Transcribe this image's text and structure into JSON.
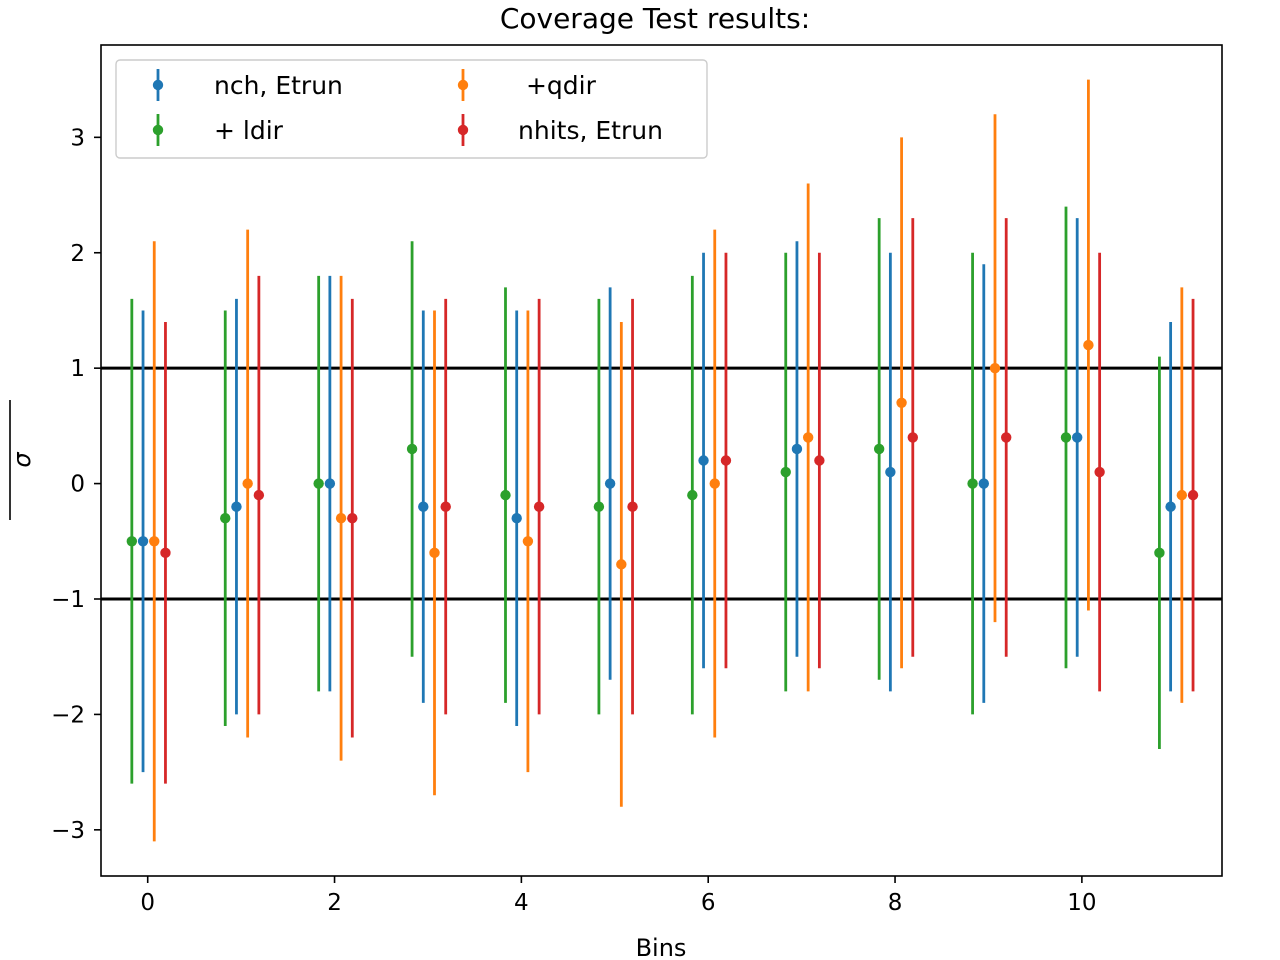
{
  "chart_data": {
    "type": "scatter",
    "title": "Coverage Test results:",
    "xlabel": "Bins",
    "ylabel": "σ",
    "xlim": [
      -0.5,
      11.5
    ],
    "ylim": [
      -3.4,
      3.8
    ],
    "xticks": [
      0,
      2,
      4,
      6,
      8,
      10
    ],
    "yticks": [
      -3,
      -2,
      -1,
      0,
      1,
      2,
      3
    ],
    "ytick_labels": [
      "−3",
      "−2",
      "−1",
      "0",
      "1",
      "2",
      "3"
    ],
    "grid": false,
    "legend_position": "top-left",
    "reference_lines": [
      1,
      -1
    ],
    "bins": [
      0,
      1,
      2,
      3,
      4,
      5,
      6,
      7,
      8,
      9,
      10,
      11
    ],
    "series": [
      {
        "name": "nch, Etrun",
        "color": "#1f77b4",
        "offset": -0.05,
        "values": [
          -0.5,
          -0.2,
          0.0,
          -0.2,
          -0.3,
          0.0,
          0.2,
          0.3,
          0.1,
          0.0,
          0.4,
          -0.2
        ],
        "lower": [
          -2.5,
          -2.0,
          -1.8,
          -1.9,
          -2.1,
          -1.7,
          -1.6,
          -1.5,
          -1.8,
          -1.9,
          -1.5,
          -1.8
        ],
        "upper": [
          1.5,
          1.6,
          1.8,
          1.5,
          1.5,
          1.7,
          2.0,
          2.1,
          2.0,
          1.9,
          2.3,
          1.4
        ]
      },
      {
        "name": " +qdir",
        "color": "#ff7f0e",
        "offset": 0.07,
        "values": [
          -0.5,
          0.0,
          -0.3,
          -0.6,
          -0.5,
          -0.7,
          0.0,
          0.4,
          0.7,
          1.0,
          1.2,
          -0.1
        ],
        "lower": [
          -3.1,
          -2.2,
          -2.4,
          -2.7,
          -2.5,
          -2.8,
          -2.2,
          -1.8,
          -1.6,
          -1.2,
          -1.1,
          -1.9
        ],
        "upper": [
          2.1,
          2.2,
          1.8,
          1.5,
          1.5,
          1.4,
          2.2,
          2.6,
          3.0,
          3.2,
          3.5,
          1.7
        ]
      },
      {
        "name": "+ ldir",
        "color": "#2ca02c",
        "offset": -0.17,
        "values": [
          -0.5,
          -0.3,
          0.0,
          0.3,
          -0.1,
          -0.2,
          -0.1,
          0.1,
          0.3,
          0.0,
          0.4,
          -0.6
        ],
        "lower": [
          -2.6,
          -2.1,
          -1.8,
          -1.5,
          -1.9,
          -2.0,
          -2.0,
          -1.8,
          -1.7,
          -2.0,
          -1.6,
          -2.3
        ],
        "upper": [
          1.6,
          1.5,
          1.8,
          2.1,
          1.7,
          1.6,
          1.8,
          2.0,
          2.3,
          2.0,
          2.4,
          1.1
        ]
      },
      {
        "name": "nhits, Etrun",
        "color": "#d62728",
        "offset": 0.19,
        "values": [
          -0.6,
          -0.1,
          -0.3,
          -0.2,
          -0.2,
          -0.2,
          0.2,
          0.2,
          0.4,
          0.4,
          0.1,
          -0.1
        ],
        "lower": [
          -2.6,
          -2.0,
          -2.2,
          -2.0,
          -2.0,
          -2.0,
          -1.6,
          -1.6,
          -1.5,
          -1.5,
          -1.8,
          -1.8
        ],
        "upper": [
          1.4,
          1.8,
          1.6,
          1.6,
          1.6,
          1.6,
          2.0,
          2.0,
          2.3,
          2.3,
          2.0,
          1.6
        ]
      }
    ],
    "legend_order": [
      0,
      2,
      1,
      3
    ]
  }
}
